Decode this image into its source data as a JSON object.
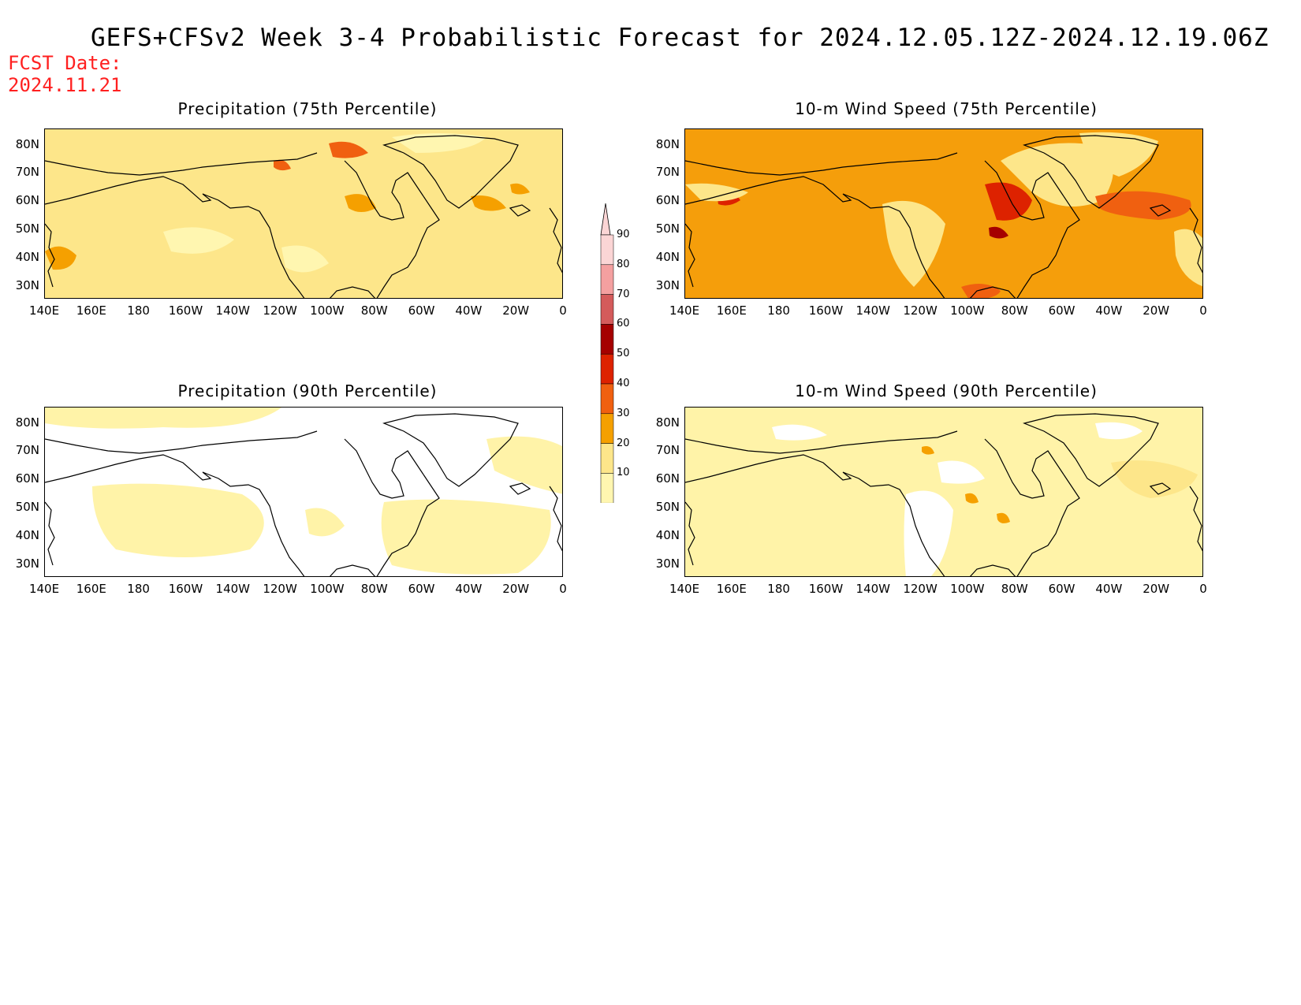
{
  "header": {
    "title": "GEFS+CFSv2 Week 3-4 Probabilistic Forecast for 2024.12.05.12Z-2024.12.19.06Z",
    "fcst_label": "FCST Date:",
    "fcst_date": "2024.11.21"
  },
  "lat_labels": [
    "80N",
    "70N",
    "60N",
    "50N",
    "40N",
    "30N"
  ],
  "lon_labels": [
    "140E",
    "160E",
    "180",
    "160W",
    "140W",
    "120W",
    "100W",
    "80W",
    "60W",
    "40W",
    "20W",
    "0"
  ],
  "panels": [
    {
      "id": "precip75",
      "title": "Precipitation (75th Percentile)",
      "base_color": "#fde68a"
    },
    {
      "id": "wind75",
      "title": "10-m Wind Speed (75th Percentile)",
      "base_color": "#f59e0b"
    },
    {
      "id": "precip90",
      "title": "Precipitation (90th Percentile)",
      "base_color": "#ffffff"
    },
    {
      "id": "wind90",
      "title": "10-m Wind Speed (90th Percentile)",
      "base_color": "#fff3a8"
    }
  ],
  "colorbar": {
    "labels": [
      "90",
      "80",
      "70",
      "60",
      "50",
      "40",
      "30",
      "20",
      "10"
    ],
    "colors": [
      "#fbd5d5",
      "#f4a0a0",
      "#d45b5b",
      "#a50000",
      "#dd2200",
      "#f06010",
      "#f5a000",
      "#fde68a",
      "#fff6b0"
    ]
  }
}
